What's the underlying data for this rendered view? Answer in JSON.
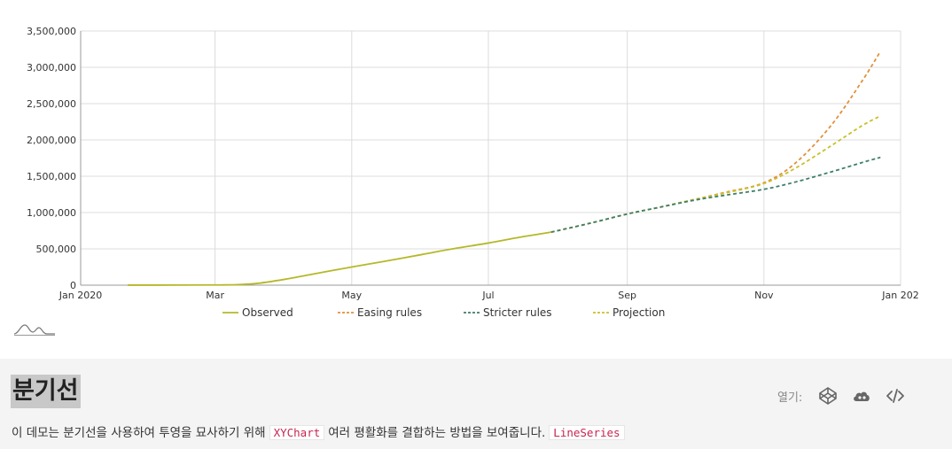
{
  "chart_data": {
    "type": "line",
    "x_ticks": [
      "Jan 2020",
      "Mar",
      "May",
      "Jul",
      "Sep",
      "Nov",
      "Jan 202"
    ],
    "y_ticks": [
      "0",
      "500,000",
      "1,000,000",
      "1,500,000",
      "2,000,000",
      "2,500,000",
      "3,000,000",
      "3,500,000"
    ],
    "ylim": [
      0,
      3500000
    ],
    "xlim": [
      "2020-01-01",
      "2021-01-01"
    ],
    "grid": true,
    "legend_position": "bottom",
    "series": [
      {
        "name": "Observed",
        "color": "#b5b829",
        "dashed": false,
        "points": [
          [
            "2020-01-22",
            500
          ],
          [
            "2020-02-15",
            1500
          ],
          [
            "2020-02-29",
            3000
          ],
          [
            "2020-03-10",
            6000
          ],
          [
            "2020-03-20",
            25000
          ],
          [
            "2020-04-01",
            80000
          ],
          [
            "2020-04-15",
            160000
          ],
          [
            "2020-05-01",
            250000
          ],
          [
            "2020-05-15",
            325000
          ],
          [
            "2020-06-01",
            420000
          ],
          [
            "2020-06-15",
            500000
          ],
          [
            "2020-07-01",
            580000
          ],
          [
            "2020-07-15",
            660000
          ],
          [
            "2020-07-29",
            730000
          ]
        ]
      },
      {
        "name": "Easing rules",
        "color": "#e0913c",
        "dashed": true,
        "points": [
          [
            "2020-07-29",
            730000
          ],
          [
            "2020-08-15",
            850000
          ],
          [
            "2020-09-01",
            980000
          ],
          [
            "2020-09-15",
            1070000
          ],
          [
            "2020-10-01",
            1180000
          ],
          [
            "2020-10-15",
            1280000
          ],
          [
            "2020-11-01",
            1410000
          ],
          [
            "2020-11-15",
            1680000
          ],
          [
            "2020-12-01",
            2200000
          ],
          [
            "2020-12-15",
            2820000
          ],
          [
            "2020-12-23",
            3220000
          ]
        ]
      },
      {
        "name": "Stricter rules",
        "color": "#3e7f6b",
        "dashed": true,
        "points": [
          [
            "2020-07-29",
            730000
          ],
          [
            "2020-08-15",
            850000
          ],
          [
            "2020-09-01",
            980000
          ],
          [
            "2020-09-15",
            1070000
          ],
          [
            "2020-10-01",
            1170000
          ],
          [
            "2020-10-15",
            1240000
          ],
          [
            "2020-11-01",
            1320000
          ],
          [
            "2020-11-15",
            1420000
          ],
          [
            "2020-12-01",
            1560000
          ],
          [
            "2020-12-15",
            1690000
          ],
          [
            "2020-12-23",
            1760000
          ]
        ]
      },
      {
        "name": "Projection",
        "color": "#c9c02c",
        "dashed": true,
        "points": [
          [
            "2020-07-29",
            730000
          ],
          [
            "2020-08-15",
            850000
          ],
          [
            "2020-09-01",
            980000
          ],
          [
            "2020-09-15",
            1070000
          ],
          [
            "2020-10-01",
            1180000
          ],
          [
            "2020-10-15",
            1270000
          ],
          [
            "2020-11-01",
            1400000
          ],
          [
            "2020-11-15",
            1610000
          ],
          [
            "2020-12-01",
            1920000
          ],
          [
            "2020-12-15",
            2200000
          ],
          [
            "2020-12-23",
            2330000
          ]
        ]
      }
    ]
  },
  "footer": {
    "title": "분기선",
    "desc_before": "이 데모는 분기선을 사용하여 투영을 묘사하기 위해",
    "code1": "XYChart",
    "desc_middle": "여러 평활화를 결합하는 방법을 보여줍니다.",
    "code2": "LineSeries",
    "open_label": "열기:",
    "icons": [
      "codepen-icon",
      "cloud-icon",
      "code-icon"
    ]
  }
}
